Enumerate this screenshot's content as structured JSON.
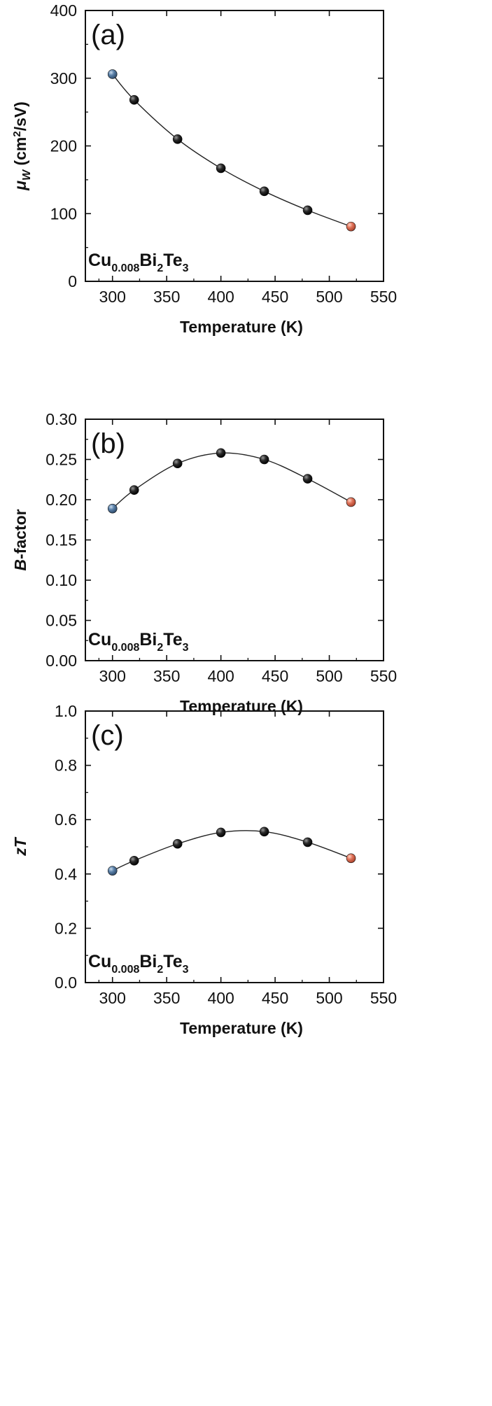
{
  "chart_data": [
    {
      "type": "line",
      "panel_label": "(a)",
      "title": "",
      "xlabel": "Temperature (K)",
      "ylabel": {
        "pre": "",
        "symbol": "μ",
        "sub": "W",
        "unit_pre": " (cm",
        "sup": "2",
        "unit_post": "/sV)"
      },
      "sample": {
        "a": "Cu",
        "a_sub": "0.008",
        "b": "Bi",
        "b_sub": "2",
        "c": "Te",
        "c_sub": "3"
      },
      "xlim": [
        275,
        550
      ],
      "ylim": [
        0,
        400
      ],
      "xticks": [
        300,
        350,
        400,
        450,
        500,
        550
      ],
      "xtick_labels": [
        "300",
        "350",
        "400",
        "450",
        "500",
        "550"
      ],
      "yticks": [
        0,
        100,
        200,
        300,
        400
      ],
      "ytick_labels": [
        "0",
        "100",
        "200",
        "300",
        "400"
      ],
      "series": [
        {
          "name": "Cu0.008Bi2Te3",
          "x": [
            300,
            320,
            360,
            400,
            440,
            480,
            520
          ],
          "y": [
            306,
            268,
            210,
            167,
            133,
            105,
            81
          ]
        }
      ],
      "marker_colors": [
        "#5a80a8",
        "#1a1a1a",
        "#1a1a1a",
        "#1a1a1a",
        "#1a1a1a",
        "#1a1a1a",
        "#e0735a"
      ]
    },
    {
      "type": "line",
      "panel_label": "(b)",
      "title": "",
      "xlabel": "Temperature (K)",
      "ylabel": {
        "pre": "",
        "symbol": "B",
        "sub": "",
        "unit_pre": "-factor",
        "sup": "",
        "unit_post": ""
      },
      "sample": {
        "a": "Cu",
        "a_sub": "0.008",
        "b": "Bi",
        "b_sub": "2",
        "c": "Te",
        "c_sub": "3"
      },
      "xlim": [
        275,
        550
      ],
      "ylim": [
        0,
        0.3
      ],
      "xticks": [
        300,
        350,
        400,
        450,
        500,
        550
      ],
      "xtick_labels": [
        "300",
        "350",
        "400",
        "450",
        "500",
        "550"
      ],
      "yticks": [
        0,
        0.05,
        0.1,
        0.15,
        0.2,
        0.25,
        0.3
      ],
      "ytick_labels": [
        "0.00",
        "0.05",
        "0.10",
        "0.15",
        "0.20",
        "0.25",
        "0.30"
      ],
      "series": [
        {
          "name": "Cu0.008Bi2Te3",
          "x": [
            300,
            320,
            360,
            400,
            440,
            480,
            520
          ],
          "y": [
            0.189,
            0.212,
            0.245,
            0.258,
            0.25,
            0.226,
            0.197
          ]
        }
      ],
      "marker_colors": [
        "#5a80a8",
        "#1a1a1a",
        "#1a1a1a",
        "#1a1a1a",
        "#1a1a1a",
        "#1a1a1a",
        "#e0735a"
      ]
    },
    {
      "type": "line",
      "panel_label": "(c)",
      "title": "",
      "xlabel": "Temperature (K)",
      "ylabel": {
        "pre": "z",
        "symbol": "T",
        "sub": "",
        "unit_pre": "",
        "sup": "",
        "unit_post": ""
      },
      "sample": {
        "a": "Cu",
        "a_sub": "0.008",
        "b": "Bi",
        "b_sub": "2",
        "c": "Te",
        "c_sub": "3"
      },
      "xlim": [
        275,
        550
      ],
      "ylim": [
        0,
        1.0
      ],
      "xticks": [
        300,
        350,
        400,
        450,
        500,
        550
      ],
      "xtick_labels": [
        "300",
        "350",
        "400",
        "450",
        "500",
        "550"
      ],
      "yticks": [
        0,
        0.2,
        0.4,
        0.6,
        0.8,
        1.0
      ],
      "ytick_labels": [
        "0.0",
        "0.2",
        "0.4",
        "0.6",
        "0.8",
        "1.0"
      ],
      "series": [
        {
          "name": "Cu0.008Bi2Te3",
          "x": [
            300,
            320,
            360,
            400,
            440,
            480,
            520
          ],
          "y": [
            0.412,
            0.449,
            0.511,
            0.553,
            0.556,
            0.517,
            0.458
          ]
        }
      ],
      "marker_colors": [
        "#5a80a8",
        "#1a1a1a",
        "#1a1a1a",
        "#1a1a1a",
        "#1a1a1a",
        "#1a1a1a",
        "#e0735a"
      ]
    }
  ]
}
